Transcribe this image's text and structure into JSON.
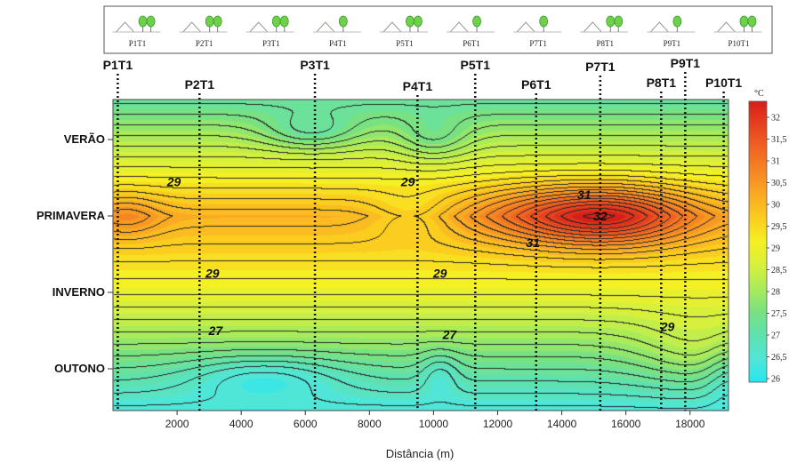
{
  "chart_data": {
    "type": "heatmap",
    "xlabel": "Distância (m)",
    "x_ticks": [
      2000,
      4000,
      6000,
      8000,
      10000,
      12000,
      14000,
      16000,
      18000
    ],
    "xlim": [
      0,
      19200
    ],
    "seasons": [
      "VERÃO",
      "PRIMAVERA",
      "INVERNO",
      "OUTONO"
    ],
    "points": [
      {
        "name": "P1T1",
        "x": 150
      },
      {
        "name": "P2T1",
        "x": 2700
      },
      {
        "name": "P3T1",
        "x": 6300
      },
      {
        "name": "P4T1",
        "x": 9500
      },
      {
        "name": "P5T1",
        "x": 11300
      },
      {
        "name": "P6T1",
        "x": 13200
      },
      {
        "name": "P7T1",
        "x": 15200
      },
      {
        "name": "P8T1",
        "x": 17100
      },
      {
        "name": "P9T1",
        "x": 17850
      },
      {
        "name": "P10T1",
        "x": 19050
      }
    ],
    "colorbar": {
      "unit": "°C",
      "min": 26,
      "max": 32,
      "ticks": [
        "32",
        "31,5",
        "31",
        "30,5",
        "30",
        "29,5",
        "29",
        "28,5",
        "28",
        "27,5",
        "27",
        "26,5",
        "26"
      ]
    },
    "contour_labels": [
      {
        "text": "29",
        "x": 1900,
        "season": 0.55
      },
      {
        "text": "29",
        "x": 9200,
        "season": 0.55
      },
      {
        "text": "31",
        "x": 14700,
        "season": 0.72
      },
      {
        "text": "32",
        "x": 15200,
        "season": 1.0
      },
      {
        "text": "31",
        "x": 13100,
        "season": 1.35
      },
      {
        "text": "29",
        "x": 3100,
        "season": 1.75
      },
      {
        "text": "29",
        "x": 10200,
        "season": 1.75
      },
      {
        "text": "29",
        "x": 17300,
        "season": 2.45
      },
      {
        "text": "27",
        "x": 3200,
        "season": 2.5
      },
      {
        "text": "27",
        "x": 10500,
        "season": 2.55
      }
    ]
  },
  "legend_panel": {
    "items": [
      "P1T1",
      "P2T1",
      "P3T1",
      "P4T1",
      "P5T1",
      "P6T1",
      "P7T1",
      "P8T1",
      "P9T1",
      "P10T1"
    ]
  }
}
